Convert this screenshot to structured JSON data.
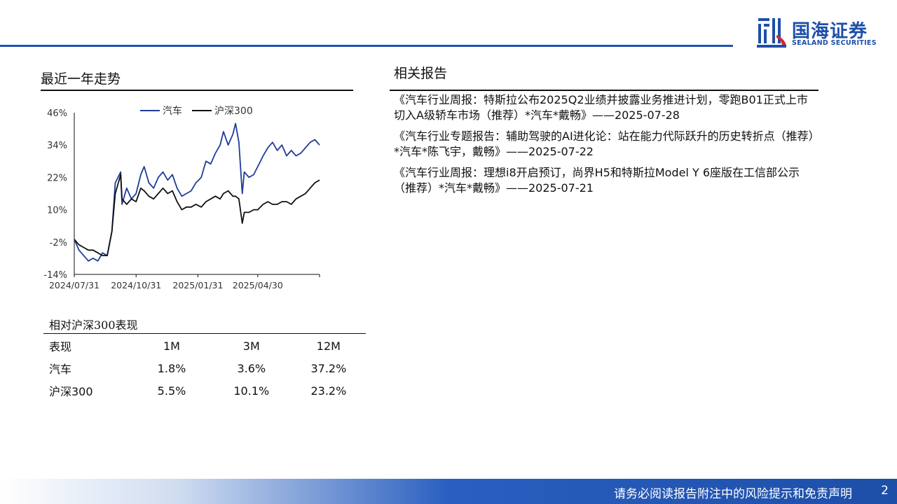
{
  "logo": {
    "name_cn": "国海证券",
    "name_en": "SEALAND SECURITIES"
  },
  "left": {
    "trend_title": "最近一年走势",
    "perf_title": "相对沪深300表现",
    "perf_table": {
      "headers": [
        "表现",
        "1M",
        "3M",
        "12M"
      ],
      "rows": [
        [
          "汽车",
          "1.8%",
          "3.6%",
          "37.2%"
        ],
        [
          "沪深300",
          "5.5%",
          "10.1%",
          "23.2%"
        ]
      ]
    }
  },
  "right": {
    "title": "相关报告",
    "reports": [
      "《汽车行业周报：特斯拉公布2025Q2业绩并披露业务推进计划，零跑B01正式上市切入A级轿车市场（推荐）*汽车*戴畅》——2025-07-28",
      "《汽车行业专题报告：辅助驾驶的AI进化论：站在能力代际跃升的历史转折点（推荐）*汽车*陈飞宇，戴畅》——2025-07-22",
      "《汽车行业周报：理想i8开启预订，尚界H5和特斯拉Model Y 6座版在工信部公示（推荐）*汽车*戴畅》——2025-07-21"
    ]
  },
  "footer": {
    "disclaimer": "请务必阅读报告附注中的风险提示和免责声明",
    "page": "2"
  },
  "chart_data": {
    "type": "line",
    "title": "",
    "xlabel": "",
    "ylabel": "",
    "y_ticks": [
      "46%",
      "34%",
      "22%",
      "10%",
      "-2%",
      "-14%"
    ],
    "ylim": [
      -14,
      46
    ],
    "x_tick_labels": [
      "2024/07/31",
      "2024/10/31",
      "2025/01/31",
      "2025/04/30"
    ],
    "xlim": [
      "2024/07/31",
      "2025/07/31"
    ],
    "legend_position": "top-center",
    "grid": false,
    "series": [
      {
        "name": "汽车",
        "color": "#1f3c99",
        "points": [
          [
            "2024/07/31",
            -1
          ],
          [
            "2024/08/07",
            -5
          ],
          [
            "2024/08/14",
            -7
          ],
          [
            "2024/08/21",
            -9
          ],
          [
            "2024/08/28",
            -8
          ],
          [
            "2024/09/04",
            -9
          ],
          [
            "2024/09/11",
            -6
          ],
          [
            "2024/09/18",
            -7
          ],
          [
            "2024/09/25",
            2
          ],
          [
            "2024/09/30",
            20
          ],
          [
            "2024/10/08",
            24
          ],
          [
            "2024/10/10",
            12
          ],
          [
            "2024/10/17",
            18
          ],
          [
            "2024/10/24",
            14
          ],
          [
            "2024/10/31",
            16
          ],
          [
            "2024/11/07",
            23
          ],
          [
            "2024/11/12",
            26
          ],
          [
            "2024/11/19",
            20
          ],
          [
            "2024/11/26",
            18
          ],
          [
            "2024/12/03",
            22
          ],
          [
            "2024/12/10",
            24
          ],
          [
            "2024/12/17",
            21
          ],
          [
            "2024/12/24",
            23
          ],
          [
            "2024/12/31",
            18
          ],
          [
            "2025/01/07",
            15
          ],
          [
            "2025/01/14",
            16
          ],
          [
            "2025/01/21",
            17
          ],
          [
            "2025/01/28",
            20
          ],
          [
            "2025/02/05",
            22
          ],
          [
            "2025/02/12",
            28
          ],
          [
            "2025/02/19",
            27
          ],
          [
            "2025/02/26",
            31
          ],
          [
            "2025/03/05",
            34
          ],
          [
            "2025/03/10",
            39
          ],
          [
            "2025/03/17",
            34
          ],
          [
            "2025/03/24",
            38
          ],
          [
            "2025/03/28",
            42
          ],
          [
            "2025/04/02",
            35
          ],
          [
            "2025/04/07",
            16
          ],
          [
            "2025/04/10",
            24
          ],
          [
            "2025/04/17",
            22
          ],
          [
            "2025/04/24",
            23
          ],
          [
            "2025/04/30",
            26
          ],
          [
            "2025/05/08",
            30
          ],
          [
            "2025/05/15",
            33
          ],
          [
            "2025/05/22",
            35
          ],
          [
            "2025/05/29",
            32
          ],
          [
            "2025/06/05",
            34
          ],
          [
            "2025/06/12",
            30
          ],
          [
            "2025/06/19",
            32
          ],
          [
            "2025/06/26",
            30
          ],
          [
            "2025/07/03",
            31
          ],
          [
            "2025/07/10",
            33
          ],
          [
            "2025/07/17",
            35
          ],
          [
            "2025/07/24",
            36
          ],
          [
            "2025/07/31",
            34
          ]
        ]
      },
      {
        "name": "沪深300",
        "color": "#111111",
        "points": [
          [
            "2024/07/31",
            -1
          ],
          [
            "2024/08/07",
            -3
          ],
          [
            "2024/08/14",
            -4
          ],
          [
            "2024/08/21",
            -5
          ],
          [
            "2024/08/28",
            -5
          ],
          [
            "2024/09/04",
            -6
          ],
          [
            "2024/09/11",
            -7
          ],
          [
            "2024/09/18",
            -7
          ],
          [
            "2024/09/25",
            2
          ],
          [
            "2024/09/30",
            16
          ],
          [
            "2024/10/08",
            23
          ],
          [
            "2024/10/10",
            14
          ],
          [
            "2024/10/17",
            12
          ],
          [
            "2024/10/24",
            14
          ],
          [
            "2024/10/31",
            13
          ],
          [
            "2024/11/07",
            18
          ],
          [
            "2024/11/12",
            17
          ],
          [
            "2024/11/19",
            15
          ],
          [
            "2024/11/26",
            14
          ],
          [
            "2024/12/03",
            16
          ],
          [
            "2024/12/10",
            18
          ],
          [
            "2024/12/17",
            16
          ],
          [
            "2024/12/24",
            17
          ],
          [
            "2024/12/31",
            13
          ],
          [
            "2025/01/07",
            10
          ],
          [
            "2025/01/14",
            11
          ],
          [
            "2025/01/21",
            11
          ],
          [
            "2025/01/28",
            12
          ],
          [
            "2025/02/05",
            11
          ],
          [
            "2025/02/12",
            13
          ],
          [
            "2025/02/19",
            14
          ],
          [
            "2025/02/26",
            15
          ],
          [
            "2025/03/05",
            14
          ],
          [
            "2025/03/10",
            16
          ],
          [
            "2025/03/17",
            17
          ],
          [
            "2025/03/24",
            15
          ],
          [
            "2025/03/28",
            15
          ],
          [
            "2025/04/02",
            14
          ],
          [
            "2025/04/07",
            5
          ],
          [
            "2025/04/10",
            9
          ],
          [
            "2025/04/17",
            9
          ],
          [
            "2025/04/24",
            10
          ],
          [
            "2025/04/30",
            10
          ],
          [
            "2025/05/08",
            12
          ],
          [
            "2025/05/15",
            13
          ],
          [
            "2025/05/22",
            12
          ],
          [
            "2025/05/29",
            12
          ],
          [
            "2025/06/05",
            13
          ],
          [
            "2025/06/12",
            13
          ],
          [
            "2025/06/19",
            12
          ],
          [
            "2025/06/26",
            14
          ],
          [
            "2025/07/03",
            15
          ],
          [
            "2025/07/10",
            16
          ],
          [
            "2025/07/17",
            18
          ],
          [
            "2025/07/24",
            20
          ],
          [
            "2025/07/31",
            21
          ]
        ]
      }
    ]
  }
}
